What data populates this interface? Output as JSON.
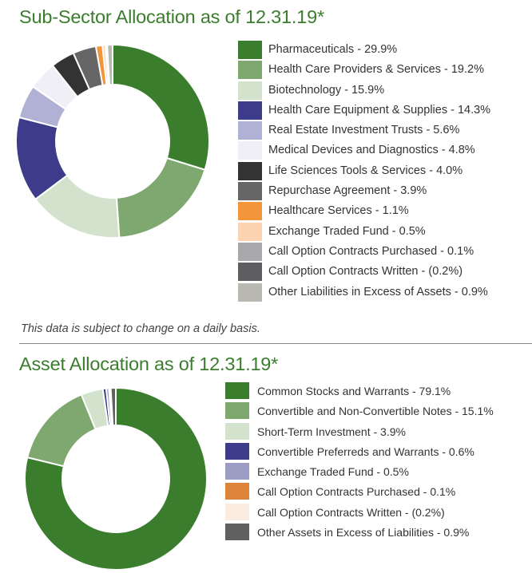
{
  "chart_data": [
    {
      "type": "pie",
      "title": "Sub-Sector Allocation as of 12.31.19*",
      "series": [
        {
          "label": "Pharmaceuticals - 29.9%",
          "value": 29.9,
          "color": "#3a7d2c"
        },
        {
          "label": "Health Care Providers & Services - 19.2%",
          "value": 19.2,
          "color": "#7fa870"
        },
        {
          "label": "Biotechnology - 15.9%",
          "value": 15.9,
          "color": "#d3e2cc"
        },
        {
          "label": "Health Care Equipment & Supplies - 14.3%",
          "value": 14.3,
          "color": "#3c3c8a"
        },
        {
          "label": "Real Estate Investment Trusts - 5.6%",
          "value": 5.6,
          "color": "#b1b1d5"
        },
        {
          "label": "Medical Devices and Diagnostics - 4.8%",
          "value": 4.8,
          "color": "#efeff5"
        },
        {
          "label": "Life Sciences Tools & Services - 4.0%",
          "value": 4.0,
          "color": "#333333"
        },
        {
          "label": "Repurchase Agreement - 3.9%",
          "value": 3.9,
          "color": "#666666"
        },
        {
          "label": "Healthcare Services - 1.1%",
          "value": 1.1,
          "color": "#f2953b"
        },
        {
          "label": "Exchange Traded  Fund - 0.5%",
          "value": 0.5,
          "color": "#fbd3b0"
        },
        {
          "label": "Call Option Contracts Purchased - 0.1%",
          "value": 0.1,
          "color": "#a9a9ad"
        },
        {
          "label": "Call Option Contracts Written - (0.2%)",
          "value": -0.2,
          "color": "#5e5e62"
        },
        {
          "label": "Other Liabilities in Excess of Assets - 0.9%",
          "value": 0.9,
          "color": "#b9b8b1"
        }
      ]
    },
    {
      "type": "pie",
      "title": "Asset Allocation as of 12.31.19*",
      "series": [
        {
          "label": "Common Stocks and Warrants - 79.1%",
          "value": 79.1,
          "color": "#3a7d2c"
        },
        {
          "label": "Convertible and Non-Convertible Notes - 15.1%",
          "value": 15.1,
          "color": "#7fa870"
        },
        {
          "label": "Short-Term Investment - 3.9%",
          "value": 3.9,
          "color": "#d3e2cc"
        },
        {
          "label": "Convertible Preferreds and Warrants - 0.6%",
          "value": 0.6,
          "color": "#3c3c8a"
        },
        {
          "label": "Exchange Traded Fund - 0.5%",
          "value": 0.5,
          "color": "#9c9cc5"
        },
        {
          "label": " Call Option Contracts Purchased - 0.1%",
          "value": 0.1,
          "color": "#de8438"
        },
        {
          "label": "Call Option Contracts Written - (0.2%)",
          "value": -0.2,
          "color": "#fbece2"
        },
        {
          "label": "Other Assets in Excess of Liabilities - 0.9%",
          "value": 0.9,
          "color": "#606060"
        }
      ]
    }
  ],
  "note": "This data is subject to change on a daily basis."
}
